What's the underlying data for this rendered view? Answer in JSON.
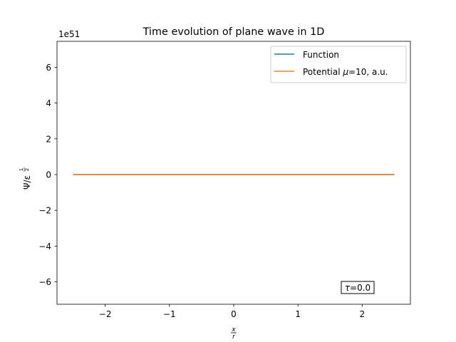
{
  "chart_data": {
    "type": "line",
    "title": "Time evolution of plane wave in 1D",
    "xlabel": "x / r",
    "xlabel_num": "x",
    "xlabel_den": "r",
    "ylabel": "Ψ/ε^(1/2)",
    "ylabel_main": "Ψ/ε",
    "ylabel_exp_num": "1",
    "ylabel_exp_den": "2",
    "y_offset_text": "1e51",
    "xlim": [
      -2.75,
      2.75
    ],
    "ylim": [
      -7.25,
      7.45
    ],
    "xticks": [
      -2,
      -1,
      0,
      1,
      2
    ],
    "xtick_labels": [
      "−2",
      "−1",
      "0",
      "1",
      "2"
    ],
    "yticks": [
      -6,
      -4,
      -2,
      0,
      2,
      4,
      6
    ],
    "ytick_labels": [
      "−6",
      "−4",
      "−2",
      "0",
      "2",
      "4",
      "6"
    ],
    "grid": false,
    "legend_position": "upper right",
    "series": [
      {
        "name": "Function",
        "color": "#1f77b4",
        "x": [
          -2.5,
          -2.0,
          -1.5,
          -1.0,
          -0.5,
          0.0,
          0.5,
          1.0,
          1.5,
          2.0,
          2.5
        ],
        "y": [
          0,
          0,
          0,
          0,
          0,
          0,
          0,
          0,
          0,
          0,
          0
        ]
      },
      {
        "name": "Potential μ=10, a.u.",
        "legend_prefix": "Potential ",
        "legend_mu": "μ",
        "legend_suffix": "=10, a.u.",
        "color": "#ff7f0e",
        "x": [
          -2.5,
          -2.0,
          -1.5,
          -1.0,
          -0.5,
          0.0,
          0.5,
          1.0,
          1.5,
          2.0,
          2.5
        ],
        "y": [
          0,
          0,
          0,
          0,
          0,
          0,
          0,
          0,
          0,
          0,
          0
        ]
      }
    ],
    "annotation": {
      "label": "τ=0.0",
      "tau_symbol": "τ",
      "text_rest": "=0.0",
      "position": "lower right"
    }
  }
}
